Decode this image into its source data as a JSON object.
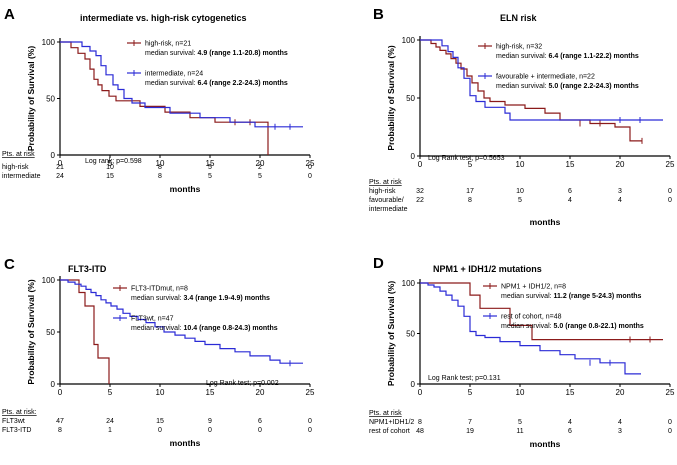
{
  "colors": {
    "series_a": "#8b1a1a",
    "series_b": "#2b2bd6",
    "axis": "#000000"
  },
  "chart_data": [
    {
      "type": "line",
      "panel_label": "A",
      "title": "intermediate vs. high-risk cytogenetics",
      "xlabel": "months",
      "ylabel": "Probability of Survival (%)",
      "xlim": [
        0,
        25
      ],
      "ylim": [
        0,
        100
      ],
      "xticks": [
        0,
        5,
        10,
        15,
        20,
        25
      ],
      "yticks": [
        0,
        50,
        100
      ],
      "legend_position": "top-right",
      "series": [
        {
          "name": "high-risk, n=21",
          "median_prefix": "median survival: ",
          "median_value": "4.9 (range 1.1-20.8) months",
          "color": "#8b1a1a",
          "steps": [
            [
              0,
              100
            ],
            [
              1.1,
              95
            ],
            [
              1.8,
              90
            ],
            [
              2.5,
              85
            ],
            [
              3.0,
              76
            ],
            [
              3.4,
              67
            ],
            [
              3.8,
              62
            ],
            [
              4.2,
              57
            ],
            [
              4.9,
              52
            ],
            [
              5.6,
              48
            ],
            [
              8.0,
              43
            ],
            [
              10.5,
              38
            ],
            [
              13.0,
              33
            ],
            [
              15.5,
              29
            ],
            [
              20.8,
              29
            ],
            [
              20.8,
              0
            ]
          ],
          "censors": [
            [
              17.5,
              29
            ],
            [
              19.0,
              29
            ]
          ]
        },
        {
          "name": "intermediate, n=24",
          "median_prefix": "median survival: ",
          "median_value": "6.4 (range 2.2-24.3) months",
          "color": "#2b2bd6",
          "steps": [
            [
              0,
              100
            ],
            [
              2.2,
              96
            ],
            [
              3.0,
              92
            ],
            [
              3.6,
              88
            ],
            [
              4.1,
              79
            ],
            [
              4.6,
              71
            ],
            [
              5.3,
              62
            ],
            [
              5.8,
              58
            ],
            [
              6.4,
              50
            ],
            [
              7.2,
              46
            ],
            [
              8.5,
              42
            ],
            [
              11.0,
              37
            ],
            [
              14.0,
              33
            ],
            [
              17.0,
              29
            ],
            [
              19.5,
              25
            ],
            [
              24.3,
              25
            ]
          ],
          "censors": [
            [
              21.5,
              25
            ],
            [
              23.0,
              25
            ]
          ]
        }
      ],
      "annotation": "Log rank; p=0.598",
      "risk_table": {
        "header": "Pts. at risk",
        "rows": [
          {
            "label": "high-risk",
            "values": [
              "21",
              "10",
              "8",
              "5",
              "2",
              "0"
            ]
          },
          {
            "label": "intermediate",
            "values": [
              "24",
              "15",
              "8",
              "5",
              "5",
              "0"
            ]
          }
        ]
      }
    },
    {
      "type": "line",
      "panel_label": "B",
      "title": "ELN risk",
      "xlabel": "months",
      "ylabel": "Probability of Survival (%)",
      "xlim": [
        0,
        25
      ],
      "ylim": [
        0,
        100
      ],
      "xticks": [
        0,
        5,
        10,
        15,
        20,
        25
      ],
      "yticks": [
        0,
        50,
        100
      ],
      "legend_position": "top-right",
      "series": [
        {
          "name": "high-risk, n=32",
          "median_prefix": "median survival: ",
          "median_value": "6.4 (range 1.1-22.2) months",
          "color": "#8b1a1a",
          "steps": [
            [
              0,
              100
            ],
            [
              1.1,
              97
            ],
            [
              1.6,
              94
            ],
            [
              2.0,
              91
            ],
            [
              2.6,
              88
            ],
            [
              3.1,
              84
            ],
            [
              3.6,
              80
            ],
            [
              4.1,
              75
            ],
            [
              4.7,
              69
            ],
            [
              5.2,
              63
            ],
            [
              5.8,
              56
            ],
            [
              6.4,
              50
            ],
            [
              7.0,
              47
            ],
            [
              8.5,
              44
            ],
            [
              10.5,
              41
            ],
            [
              12.5,
              37
            ],
            [
              14.0,
              31
            ],
            [
              17.0,
              28
            ],
            [
              19.5,
              25
            ],
            [
              21.0,
              19
            ],
            [
              21.0,
              13
            ],
            [
              22.2,
              13
            ]
          ],
          "censors": [
            [
              16.0,
              28
            ],
            [
              18.0,
              28
            ],
            [
              22.2,
              13
            ]
          ]
        },
        {
          "name": "favourable + intermediate, n=22",
          "median_prefix": "median survival: ",
          "median_value": "5.0 (range 2.2-24.3) months",
          "color": "#2b2bd6",
          "steps": [
            [
              0,
              100
            ],
            [
              2.2,
              95
            ],
            [
              2.8,
              90
            ],
            [
              3.3,
              85
            ],
            [
              3.8,
              76
            ],
            [
              4.4,
              67
            ],
            [
              5.0,
              52
            ],
            [
              5.6,
              47
            ],
            [
              6.5,
              42
            ],
            [
              8.5,
              37
            ],
            [
              9.0,
              31
            ],
            [
              24.3,
              31
            ]
          ],
          "censors": [
            [
              20.0,
              31
            ],
            [
              22.0,
              31
            ]
          ]
        }
      ],
      "annotation": "Log Rank test; p=0.5653",
      "risk_table": {
        "header": "Pts. at risk",
        "rows": [
          {
            "label": "high-risk",
            "values": [
              "32",
              "17",
              "10",
              "6",
              "3",
              "0"
            ]
          },
          {
            "label": "favourable/",
            "values": [
              "22",
              "8",
              "5",
              "4",
              "4",
              "0"
            ]
          },
          {
            "label": "intermediate",
            "values": []
          }
        ]
      }
    },
    {
      "type": "line",
      "panel_label": "C",
      "title": "FLT3-ITD",
      "xlabel": "months",
      "ylabel": "Probability of Survival (%)",
      "xlim": [
        0,
        25
      ],
      "ylim": [
        0,
        100
      ],
      "xticks": [
        0,
        5,
        10,
        15,
        20,
        25
      ],
      "yticks": [
        0,
        50,
        100
      ],
      "legend_position": "top-right",
      "series": [
        {
          "name": "FLT3-ITDmut, n=8",
          "median_prefix": "median survival: ",
          "median_value": "3.4 (range 1.9-4.9) months",
          "color": "#8b1a1a",
          "steps": [
            [
              0,
              100
            ],
            [
              1.9,
              88
            ],
            [
              2.5,
              75
            ],
            [
              3.4,
              62
            ],
            [
              3.4,
              38
            ],
            [
              3.8,
              25
            ],
            [
              4.9,
              12
            ],
            [
              4.9,
              0
            ]
          ],
          "censors": []
        },
        {
          "name": "FLT3wt, n=47",
          "median_prefix": "median survival: ",
          "median_value": "10.4 (range 0.8-24.3) months",
          "color": "#2b2bd6",
          "steps": [
            [
              0,
              100
            ],
            [
              0.8,
              98
            ],
            [
              1.5,
              96
            ],
            [
              2.1,
              94
            ],
            [
              2.6,
              91
            ],
            [
              3.1,
              88
            ],
            [
              3.6,
              85
            ],
            [
              4.1,
              81
            ],
            [
              4.6,
              78
            ],
            [
              5.1,
              75
            ],
            [
              5.7,
              72
            ],
            [
              6.3,
              68
            ],
            [
              7.0,
              65
            ],
            [
              7.8,
              62
            ],
            [
              8.6,
              59
            ],
            [
              9.5,
              55
            ],
            [
              10.4,
              50
            ],
            [
              11.5,
              47
            ],
            [
              12.5,
              44
            ],
            [
              13.5,
              41
            ],
            [
              14.5,
              38
            ],
            [
              16.0,
              34
            ],
            [
              17.5,
              31
            ],
            [
              19.0,
              27
            ],
            [
              21.0,
              23
            ],
            [
              22.0,
              20
            ],
            [
              24.3,
              20
            ]
          ],
          "censors": [
            [
              23.0,
              20
            ]
          ]
        }
      ],
      "annotation": "Log Rank test; p=0.002",
      "risk_table": {
        "header": "Pts. at risk:",
        "rows": [
          {
            "label": "FLT3wt",
            "values": [
              "47",
              "24",
              "15",
              "9",
              "6",
              "0"
            ]
          },
          {
            "label": "FLT3-ITD",
            "values": [
              "8",
              "1",
              "0",
              "0",
              "0",
              "0"
            ]
          }
        ]
      }
    },
    {
      "type": "line",
      "panel_label": "D",
      "title": "NPM1 + IDH1/2 mutations",
      "xlabel": "months",
      "ylabel": "Probability of Survival (%)",
      "xlim": [
        0,
        25
      ],
      "ylim": [
        0,
        100
      ],
      "xticks": [
        0,
        5,
        10,
        15,
        20,
        25
      ],
      "yticks": [
        0,
        50,
        100
      ],
      "legend_position": "top-right",
      "series": [
        {
          "name": "NPM1 + IDH1/2, n=8",
          "median_prefix": "median survival: ",
          "median_value": "11.2 (range 5-24.3) months",
          "color": "#8b1a1a",
          "steps": [
            [
              0,
              100
            ],
            [
              5.0,
              88
            ],
            [
              6.0,
              75
            ],
            [
              9.0,
              58
            ],
            [
              11.2,
              44
            ],
            [
              24.3,
              44
            ]
          ],
          "censors": [
            [
              21.0,
              44
            ],
            [
              23.0,
              44
            ]
          ]
        },
        {
          "name": "rest of cohort, n=48",
          "median_prefix": "median survival: ",
          "median_value": "5.0 (range 0.8-22.1) months",
          "color": "#2b2bd6",
          "steps": [
            [
              0,
              100
            ],
            [
              0.8,
              98
            ],
            [
              1.4,
              96
            ],
            [
              2.0,
              92
            ],
            [
              2.6,
              88
            ],
            [
              3.2,
              83
            ],
            [
              3.8,
              77
            ],
            [
              4.4,
              67
            ],
            [
              5.0,
              52
            ],
            [
              5.6,
              48
            ],
            [
              6.5,
              46
            ],
            [
              8.0,
              42
            ],
            [
              10.0,
              38
            ],
            [
              12.0,
              33
            ],
            [
              14.0,
              29
            ],
            [
              15.5,
              25
            ],
            [
              18.0,
              21
            ],
            [
              20.5,
              17
            ],
            [
              20.5,
              10
            ],
            [
              22.1,
              10
            ]
          ],
          "censors": [
            [
              17.0,
              21
            ],
            [
              19.0,
              21
            ]
          ]
        }
      ],
      "annotation": "Log Rank test; p=0.131",
      "risk_table": {
        "header": "Pts. at risk",
        "rows": [
          {
            "label": "NPM1+IDH1/2",
            "values": [
              "8",
              "7",
              "5",
              "4",
              "4",
              "0"
            ]
          },
          {
            "label": "rest of cohort",
            "values": [
              "48",
              "19",
              "11",
              "6",
              "3",
              "0"
            ]
          }
        ]
      }
    }
  ]
}
